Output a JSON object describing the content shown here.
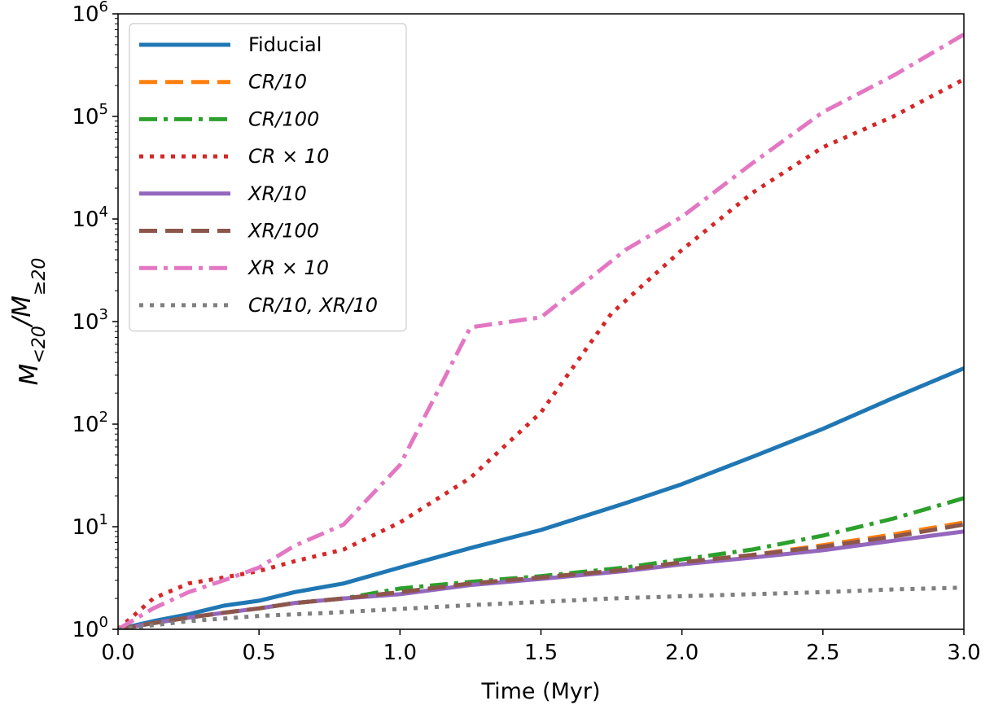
{
  "chart_data": {
    "type": "line",
    "xlabel": "Time (Myr)",
    "ylabel": "M_{<20}/M_{≥20}",
    "xlim": [
      0.0,
      3.0
    ],
    "ylim": [
      1,
      1000000
    ],
    "yscale": "log",
    "grid": false,
    "legend_position": "top-left",
    "xticks": [
      "0.0",
      "0.5",
      "1.0",
      "1.5",
      "2.0",
      "2.5",
      "3.0"
    ],
    "yticks": [
      {
        "base": "10",
        "exp": "0",
        "value": 1
      },
      {
        "base": "10",
        "exp": "1",
        "value": 10
      },
      {
        "base": "10",
        "exp": "2",
        "value": 100
      },
      {
        "base": "10",
        "exp": "3",
        "value": 1000
      },
      {
        "base": "10",
        "exp": "4",
        "value": 10000
      },
      {
        "base": "10",
        "exp": "5",
        "value": 100000
      },
      {
        "base": "10",
        "exp": "6",
        "value": 1000000
      }
    ],
    "series": [
      {
        "name": "Fiducial",
        "color": "#1f77b4",
        "style": "solid",
        "x": [
          0,
          0.125,
          0.25,
          0.375,
          0.5,
          0.625,
          0.8,
          1.0,
          1.25,
          1.5,
          1.8,
          2.0,
          2.25,
          2.5,
          2.75,
          3.0
        ],
        "y": [
          1.0,
          1.2,
          1.4,
          1.7,
          1.9,
          2.3,
          2.8,
          4.0,
          6.2,
          9.3,
          17,
          26,
          48,
          90,
          180,
          350
        ]
      },
      {
        "name": "CR/10",
        "color": "#ff7f0e",
        "style": "dashed",
        "x": [
          0,
          0.125,
          0.25,
          0.375,
          0.5,
          0.625,
          0.8,
          1.0,
          1.25,
          1.5,
          1.8,
          2.0,
          2.25,
          2.5,
          2.75,
          3.0
        ],
        "y": [
          1.0,
          1.15,
          1.3,
          1.45,
          1.6,
          1.8,
          2.0,
          2.3,
          2.8,
          3.2,
          3.8,
          4.5,
          5.3,
          6.6,
          8.4,
          11
        ]
      },
      {
        "name": "CR/100",
        "color": "#2ca02c",
        "style": "dashdot",
        "x": [
          0,
          0.125,
          0.25,
          0.375,
          0.5,
          0.625,
          0.8,
          1.0,
          1.25,
          1.5,
          1.8,
          2.0,
          2.25,
          2.5,
          2.75,
          3.0
        ],
        "y": [
          1.0,
          1.15,
          1.3,
          1.45,
          1.6,
          1.8,
          2.0,
          2.5,
          2.9,
          3.3,
          4.0,
          4.8,
          6.0,
          8.2,
          12,
          19
        ]
      },
      {
        "name": "CR × 10",
        "color": "#d62728",
        "style": "dotted",
        "x": [
          0,
          0.125,
          0.25,
          0.375,
          0.5,
          0.625,
          0.8,
          1.0,
          1.25,
          1.5,
          1.75,
          2.0,
          2.25,
          2.5,
          2.75,
          3.0
        ],
        "y": [
          1.0,
          2.0,
          2.8,
          3.2,
          3.7,
          4.6,
          6.0,
          11,
          30,
          130,
          1200,
          5000,
          18000,
          50000,
          100000,
          230000
        ]
      },
      {
        "name": "XR/10",
        "color": "#9467bd",
        "style": "solid",
        "x": [
          0,
          0.125,
          0.25,
          0.375,
          0.5,
          0.625,
          0.8,
          1.0,
          1.25,
          1.5,
          1.8,
          2.0,
          2.25,
          2.5,
          2.75,
          3.0
        ],
        "y": [
          1.0,
          1.15,
          1.3,
          1.45,
          1.6,
          1.8,
          2.0,
          2.2,
          2.7,
          3.1,
          3.7,
          4.3,
          5.0,
          5.9,
          7.3,
          9.0
        ]
      },
      {
        "name": "XR/100",
        "color": "#8c564b",
        "style": "dashed",
        "x": [
          0,
          0.125,
          0.25,
          0.375,
          0.5,
          0.625,
          0.8,
          1.0,
          1.25,
          1.5,
          1.8,
          2.0,
          2.25,
          2.5,
          2.75,
          3.0
        ],
        "y": [
          1.0,
          1.15,
          1.3,
          1.45,
          1.6,
          1.8,
          2.0,
          2.3,
          2.8,
          3.2,
          3.8,
          4.5,
          5.3,
          6.4,
          8.0,
          10.5
        ]
      },
      {
        "name": "XR × 10",
        "color": "#e377c2",
        "style": "dashdot",
        "x": [
          0,
          0.125,
          0.25,
          0.375,
          0.5,
          0.625,
          0.8,
          1.0,
          1.25,
          1.5,
          1.8,
          2.0,
          2.25,
          2.5,
          2.75,
          3.0
        ],
        "y": [
          1.0,
          1.6,
          2.3,
          3.0,
          4.0,
          6.5,
          10.5,
          40,
          880,
          1100,
          5000,
          10500,
          35000,
          110000,
          250000,
          630000
        ]
      },
      {
        "name": "CR/10, XR/10",
        "color": "#7f7f7f",
        "style": "dotted",
        "x": [
          0,
          0.25,
          0.5,
          0.75,
          1.0,
          1.25,
          1.5,
          1.75,
          2.0,
          2.25,
          2.5,
          2.75,
          3.0
        ],
        "y": [
          1.0,
          1.2,
          1.35,
          1.45,
          1.58,
          1.72,
          1.85,
          2.0,
          2.1,
          2.2,
          2.3,
          2.45,
          2.55
        ]
      }
    ]
  }
}
